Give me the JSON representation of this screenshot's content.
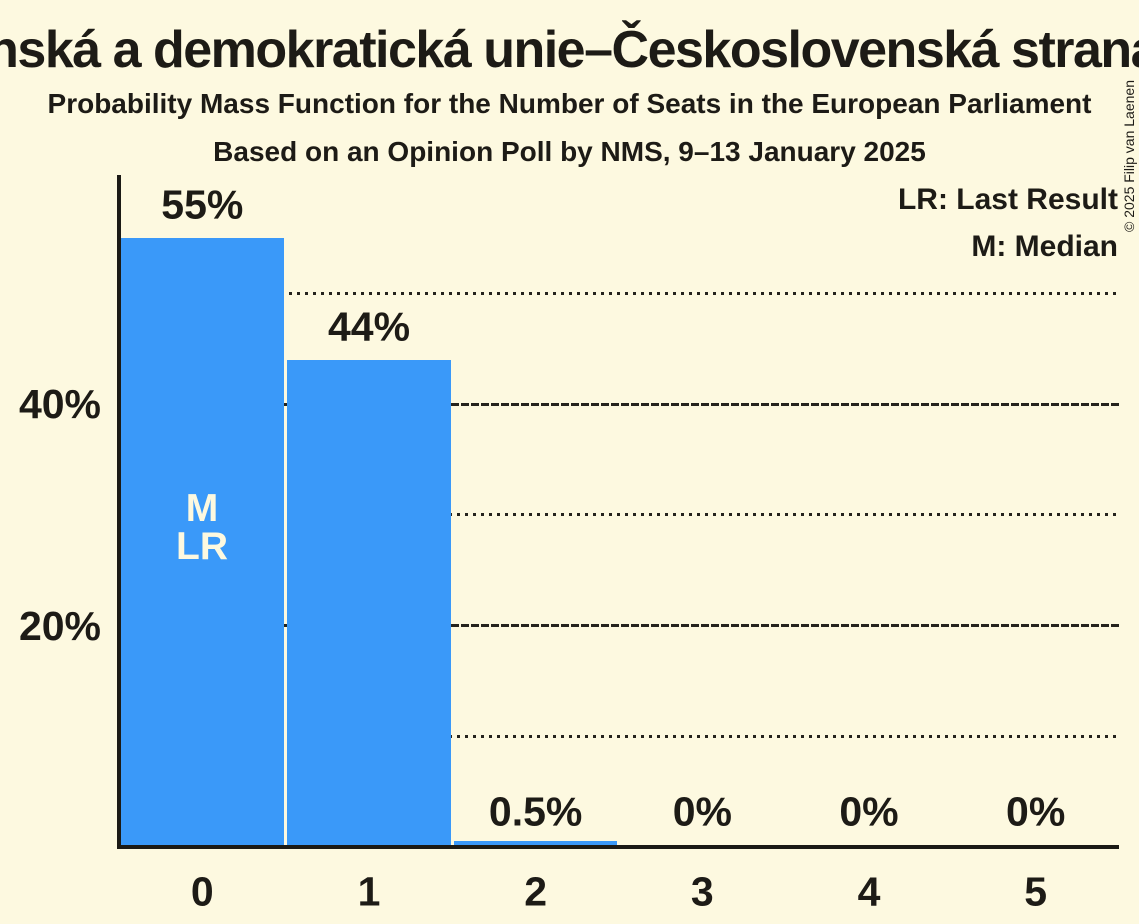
{
  "header": {
    "title": "Křesťanská a demokratická unie–Československá strana lidová",
    "subtitle1": "Probability Mass Function for the Number of Seats in the European Parliament",
    "subtitle2": "Based on an Opinion Poll by NMS, 9–13 January 2025"
  },
  "legend": {
    "lr": "LR: Last Result",
    "m": "M: Median"
  },
  "annotations": {
    "median": "M",
    "last_result": "LR"
  },
  "copyright": "© 2025 Filip van Laenen",
  "colors": {
    "background": "#FDF9E0",
    "bar": "#3A99F9",
    "text": "#1D1B16"
  },
  "chart_data": {
    "type": "bar",
    "title": "Probability Mass Function for the Number of Seats in the European Parliament",
    "xlabel": "",
    "ylabel": "",
    "categories": [
      "0",
      "1",
      "2",
      "3",
      "4",
      "5"
    ],
    "values": [
      55,
      44,
      0.5,
      0,
      0,
      0
    ],
    "bar_labels": [
      "55%",
      "44%",
      "0.5%",
      "0%",
      "0%",
      "0%"
    ],
    "median_bar": 0,
    "last_result_bar": 0,
    "ylim": [
      0,
      60
    ],
    "y_axis_labels": [
      {
        "text": "40%",
        "value": 40
      },
      {
        "text": "20%",
        "value": 20
      }
    ],
    "gridlines": [
      {
        "value": 10,
        "style": "dotted"
      },
      {
        "value": 20,
        "style": "solid"
      },
      {
        "value": 30,
        "style": "dotted"
      },
      {
        "value": 40,
        "style": "solid"
      },
      {
        "value": 50,
        "style": "dotted"
      }
    ],
    "legend_position": "top-right",
    "grid": "horizontal-only"
  }
}
